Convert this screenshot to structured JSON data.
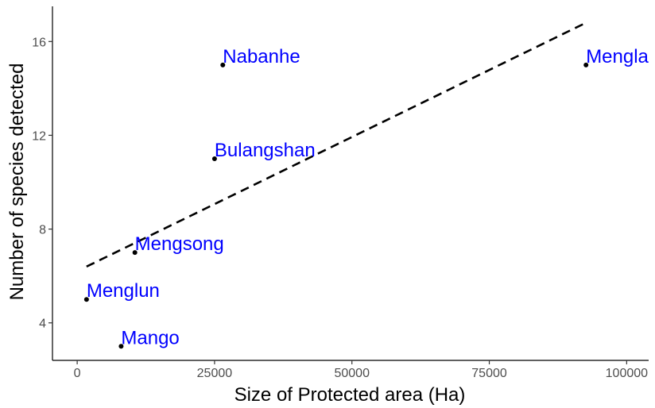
{
  "chart_data": {
    "type": "scatter",
    "xlabel": "Size of Protected area (Ha)",
    "ylabel": "Number of species detected",
    "xlim": [
      -4500,
      104000
    ],
    "ylim": [
      2.4,
      17.5
    ],
    "x_ticks": [
      0,
      25000,
      50000,
      75000,
      100000
    ],
    "y_ticks": [
      4,
      8,
      12,
      16
    ],
    "grid": false,
    "label_color": "#0000ff",
    "point_color": "#000000",
    "line_color": "#000000",
    "points": [
      {
        "name": "Mengla",
        "x": 92600,
        "y": 15
      },
      {
        "name": "Nabanhe",
        "x": 26500,
        "y": 15
      },
      {
        "name": "Bulangshan",
        "x": 25000,
        "y": 11
      },
      {
        "name": "Mengsong",
        "x": 10500,
        "y": 7
      },
      {
        "name": "Menglun",
        "x": 1700,
        "y": 5
      },
      {
        "name": "Mango",
        "x": 8000,
        "y": 3
      }
    ],
    "trendline": {
      "style": "dashed",
      "x": [
        1700,
        92600
      ],
      "y": [
        6.4,
        16.8
      ]
    }
  }
}
